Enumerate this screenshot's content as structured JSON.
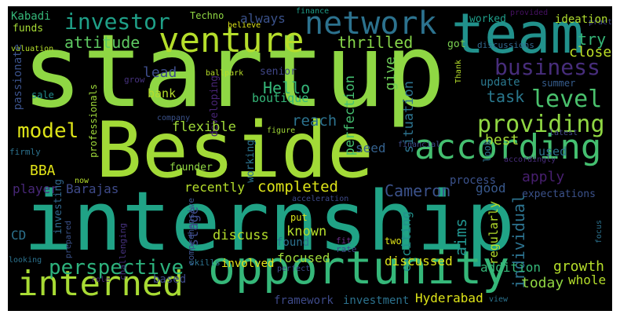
{
  "words": [
    {
      "text": "startup",
      "color": "#8fd744"
    },
    {
      "text": "Beside",
      "color": "#a2da37"
    },
    {
      "text": "internship",
      "color": "#20a386"
    },
    {
      "text": "opportunity",
      "color": "#35b779"
    },
    {
      "text": "team",
      "color": "#21918c"
    },
    {
      "text": "venture",
      "color": "#b5de2b"
    },
    {
      "text": "network",
      "color": "#2c728e"
    },
    {
      "text": "investor",
      "color": "#1fa088"
    },
    {
      "text": "according",
      "color": "#44bf70"
    },
    {
      "text": "interned",
      "color": "#a8db34"
    },
    {
      "text": "providing",
      "color": "#90d743"
    },
    {
      "text": "business",
      "color": "#472d7b"
    },
    {
      "text": "level",
      "color": "#4ac16d"
    },
    {
      "text": "perspective",
      "color": "#2db27d"
    },
    {
      "text": "model",
      "color": "#dde318"
    },
    {
      "text": "attitude",
      "color": "#5ec962"
    },
    {
      "text": "thrilled",
      "color": "#86d549"
    },
    {
      "text": "always",
      "color": "#3b528b"
    },
    {
      "text": "Kabadi",
      "color": "#35b779"
    },
    {
      "text": "Techno",
      "color": "#90d743"
    },
    {
      "text": "finance",
      "color": "#1f9e89"
    },
    {
      "text": "provided",
      "color": "#471164"
    },
    {
      "text": "practice",
      "color": "#404688"
    },
    {
      "text": "ideation",
      "color": "#b0dd2f"
    },
    {
      "text": "worked",
      "color": "#1f9e89"
    },
    {
      "text": "try",
      "color": "#35b779"
    },
    {
      "text": "closely",
      "color": "#bddf26"
    },
    {
      "text": "funds",
      "color": "#a5db36"
    },
    {
      "text": "believe",
      "color": "#dde318"
    },
    {
      "text": "got",
      "color": "#7ad151"
    },
    {
      "text": "discussions",
      "color": "#31688e"
    },
    {
      "text": "valuation",
      "color": "#b5de2b"
    },
    {
      "text": "grow",
      "color": "#46327e"
    },
    {
      "text": "lead",
      "color": "#3e4c8a"
    },
    {
      "text": "Hello",
      "color": "#35b779"
    },
    {
      "text": "give",
      "color": "#6ece58"
    },
    {
      "text": "update",
      "color": "#2a788e"
    },
    {
      "text": "summer",
      "color": "#365d8d"
    },
    {
      "text": "task",
      "color": "#2a788e"
    },
    {
      "text": "passionate",
      "color": "#3b528b"
    },
    {
      "text": "sale",
      "color": "#228d8d"
    },
    {
      "text": "ballpark",
      "color": "#b8de29"
    },
    {
      "text": "senior",
      "color": "#404688"
    },
    {
      "text": "bank",
      "color": "#b5de2b"
    },
    {
      "text": "boutique",
      "color": "#35b779"
    },
    {
      "text": "developing",
      "color": "#482576"
    },
    {
      "text": "perfection",
      "color": "#44bf70"
    },
    {
      "text": "reach",
      "color": "#2c728e"
    },
    {
      "text": "professionals",
      "color": "#9fda3a"
    },
    {
      "text": "company",
      "color": "#3b528b"
    },
    {
      "text": "flexible",
      "color": "#a0da39"
    },
    {
      "text": "figure",
      "color": "#a2da37"
    },
    {
      "text": "situation",
      "color": "#2c728e"
    },
    {
      "text": "seed",
      "color": "#34618d"
    },
    {
      "text": "best",
      "color": "#a5db36"
    },
    {
      "text": "Thank",
      "color": "#b5de2b"
    },
    {
      "text": "latest",
      "color": "#414487"
    },
    {
      "text": "financial",
      "color": "#3e4a89"
    },
    {
      "text": "used",
      "color": "#2c728e"
    },
    {
      "text": "firmly",
      "color": "#2c728e"
    },
    {
      "text": "BBA",
      "color": "#e2e418"
    },
    {
      "text": "player",
      "color": "#482878"
    },
    {
      "text": "founder",
      "color": "#90d743"
    },
    {
      "text": "working",
      "color": "#2c728e"
    },
    {
      "text": "process",
      "color": "#3b528b"
    },
    {
      "text": "apply",
      "color": "#481f70"
    },
    {
      "text": "look",
      "color": "#2c728e"
    },
    {
      "text": "accordingly",
      "color": "#472c7a"
    },
    {
      "text": "Barajas",
      "color": "#3e4a89"
    },
    {
      "text": "recently",
      "color": "#b5de2b"
    },
    {
      "text": "completed",
      "color": "#dde318"
    },
    {
      "text": "good",
      "color": "#38588c"
    },
    {
      "text": "Cameron",
      "color": "#3b528b"
    },
    {
      "text": "expectations",
      "color": "#3b528b"
    },
    {
      "text": "now",
      "color": "#b5de2b"
    },
    {
      "text": "investing",
      "color": "#31688e"
    },
    {
      "text": "comprehensive",
      "color": "#3b528b"
    },
    {
      "text": "acceleration",
      "color": "#3e4a89"
    },
    {
      "text": "prepared",
      "color": "#3b528b"
    },
    {
      "text": "stage",
      "color": "#3e4a89"
    },
    {
      "text": "put",
      "color": "#dde318"
    },
    {
      "text": "individual",
      "color": "#2c728e"
    },
    {
      "text": "regularly",
      "color": "#b5de2b"
    },
    {
      "text": "exciting",
      "color": "#21918c"
    },
    {
      "text": "challenging",
      "color": "#46327e"
    },
    {
      "text": "discuss",
      "color": "#b5de2b"
    },
    {
      "text": "known",
      "color": "#b5de2b"
    },
    {
      "text": "found",
      "color": "#2c728e"
    },
    {
      "text": "CD",
      "color": "#2c728e"
    },
    {
      "text": "aims",
      "color": "#21918c"
    },
    {
      "text": "fit",
      "color": "#6a2f87"
    },
    {
      "text": "two",
      "color": "#dde318"
    },
    {
      "text": "rate",
      "color": "#3e4a89"
    },
    {
      "text": "focus",
      "color": "#2c728e"
    },
    {
      "text": "looking",
      "color": "#2c728e"
    },
    {
      "text": "skills",
      "color": "#2c728e"
    },
    {
      "text": "perfect",
      "color": "#3e4a89"
    },
    {
      "text": "role",
      "color": "#482476"
    },
    {
      "text": "focused",
      "color": "#a0da39"
    },
    {
      "text": "discussed",
      "color": "#dde318"
    },
    {
      "text": "involved",
      "color": "#e7e419"
    },
    {
      "text": "based",
      "color": "#3e4a89"
    },
    {
      "text": "addition",
      "color": "#35b779"
    },
    {
      "text": "growth",
      "color": "#b5de2b"
    },
    {
      "text": "whole",
      "color": "#b5de2b"
    },
    {
      "text": "today",
      "color": "#90d743"
    },
    {
      "text": "framework",
      "color": "#3e4a89"
    },
    {
      "text": "investment",
      "color": "#2c728e"
    },
    {
      "text": "Hyderabad",
      "color": "#dde318"
    },
    {
      "text": "view",
      "color": "#2c728e"
    }
  ]
}
